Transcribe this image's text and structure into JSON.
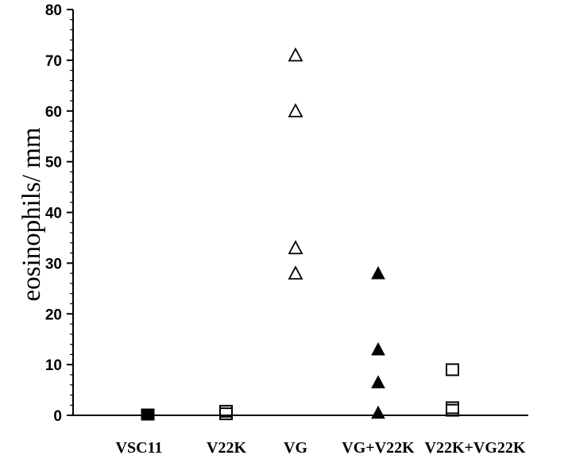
{
  "chart_data": {
    "type": "scatter",
    "title": "",
    "xlabel": "",
    "ylabel": "eosinophils/ mm",
    "ylim": [
      0,
      80
    ],
    "y_ticks": [
      0,
      10,
      20,
      30,
      40,
      50,
      60,
      70,
      80
    ],
    "y_tick_labels": [
      "0",
      "10",
      "20",
      "30",
      "40",
      "50",
      "60",
      "70",
      "80"
    ],
    "minor_tick_step": 2,
    "grid": false,
    "legend": "none",
    "categories": [
      "VSC11",
      "V22K",
      "VG",
      "VG+V22K",
      "V22K+VG22K"
    ],
    "series": [
      {
        "category": "VSC11",
        "marker": "square-filled",
        "values": [
          0,
          0,
          0,
          0
        ]
      },
      {
        "category": "V22K",
        "marker": "square-open",
        "values": [
          0.3,
          0.8
        ]
      },
      {
        "category": "VG",
        "marker": "triangle-open",
        "values": [
          71,
          60,
          33,
          28
        ]
      },
      {
        "category": "VG+V22K",
        "marker": "triangle-filled",
        "values": [
          28,
          13,
          6.5,
          0.5
        ]
      },
      {
        "category": "V22K+VG22K",
        "marker": "square-open",
        "values": [
          9,
          1.5,
          1
        ]
      }
    ]
  }
}
